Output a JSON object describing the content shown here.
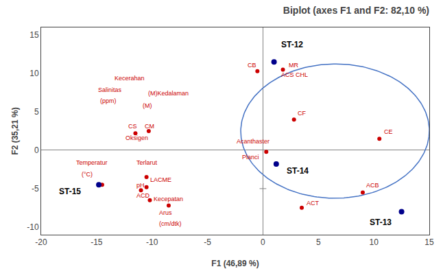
{
  "chart_data": {
    "type": "scatter",
    "title": "Biplot (axes F1 and F2: 82,10 %)",
    "xlabel": "F1 (46,89 %)",
    "ylabel": "F2 (35,21 %)",
    "xlim": [
      -20,
      15
    ],
    "ylim": [
      -11,
      16
    ],
    "xticks": [
      -20,
      -15,
      -10,
      -5,
      0,
      5,
      10,
      15
    ],
    "yticks": [
      -10,
      -5,
      0,
      5,
      10,
      15
    ],
    "grid": false,
    "stations": [
      {
        "label": "ST-12",
        "x": 1.0,
        "y": 11.5,
        "color": "#00008B",
        "label_x": 1.5,
        "label_y": 13.0
      },
      {
        "label": "ST-13",
        "x": 12.5,
        "y": -8.0,
        "color": "#00008B",
        "label_x": 9.5,
        "label_y": -10.2
      },
      {
        "label": "ST-14",
        "x": 1.2,
        "y": -1.8,
        "color": "#00008B",
        "label_x": 2.0,
        "label_y": -3.5
      },
      {
        "label": "ST-15",
        "x": -14.8,
        "y": -4.5,
        "color": "#00008B",
        "label_x": -18.5,
        "label_y": -6.2
      }
    ],
    "variables": {
      "color": "#CC0000",
      "x": [
        -11.5,
        -10.3,
        -14.5,
        -10.5,
        -10.5,
        -11.0,
        -10.2,
        -8.5,
        -0.5,
        1.8,
        2.8,
        10.5,
        9.0,
        3.5,
        0.3
      ],
      "y": [
        2.2,
        2.5,
        -4.5,
        -3.5,
        -4.8,
        -5.2,
        -6.5,
        -7.2,
        10.3,
        10.5,
        4.0,
        1.5,
        -5.5,
        -7.5,
        -0.2
      ],
      "annotations": [
        {
          "text": "Kecerahan",
          "x": -13.5,
          "y": 8.8
        },
        {
          "text": "Salinitas",
          "x": -15.0,
          "y": 7.2
        },
        {
          "text": "(ppm)",
          "x": -14.8,
          "y": 5.8
        },
        {
          "text": "(M)Kedalaman",
          "x": -10.5,
          "y": 6.8
        },
        {
          "text": "(M)",
          "x": -11.0,
          "y": 5.2
        },
        {
          "text": "CS",
          "x": -12.3,
          "y": 2.5
        },
        {
          "text": "CM",
          "x": -10.8,
          "y": 2.5
        },
        {
          "text": "Oksigen",
          "x": -12.5,
          "y": 1.0
        },
        {
          "text": "Terlarut",
          "x": -11.5,
          "y": -2.2
        },
        {
          "text": "Temperatur",
          "x": -17.0,
          "y": -2.2
        },
        {
          "text": "(°C)",
          "x": -16.5,
          "y": -3.8
        },
        {
          "text": "pH",
          "x": -11.5,
          "y": -5.2
        },
        {
          "text": "LACME",
          "x": -10.3,
          "y": -4.5
        },
        {
          "text": "ACD",
          "x": -11.5,
          "y": -6.5
        },
        {
          "text": "Kecepatan",
          "x": -10.0,
          "y": -7.0
        },
        {
          "text": "Arus",
          "x": -9.5,
          "y": -8.8
        },
        {
          "text": "(cm/dtk)",
          "x": -9.5,
          "y": -10.2
        },
        {
          "text": "Acanthaster",
          "x": -2.5,
          "y": 0.5
        },
        {
          "text": "Planci",
          "x": -2.0,
          "y": -1.5
        },
        {
          "text": "CB",
          "x": -1.5,
          "y": 10.5
        },
        {
          "text": "MR",
          "x": 2.2,
          "y": 10.5
        },
        {
          "text": "ACS CHL",
          "x": 1.5,
          "y": 9.2
        },
        {
          "text": "CF",
          "x": 3.0,
          "y": 4.2
        },
        {
          "text": "CE",
          "x": 10.8,
          "y": 1.8
        },
        {
          "text": "ACB",
          "x": 9.2,
          "y": -5.2
        },
        {
          "text": "ACT",
          "x": 3.8,
          "y": -7.5
        }
      ]
    },
    "origin_marker": {
      "x": 0,
      "y": -5,
      "color": "gray",
      "marker": "cross"
    },
    "ellipse": {
      "x_center": 6.5,
      "y_center": 2.5,
      "width": 17.0,
      "height": 17.5,
      "angle": -5,
      "color": "#4472C4"
    }
  }
}
